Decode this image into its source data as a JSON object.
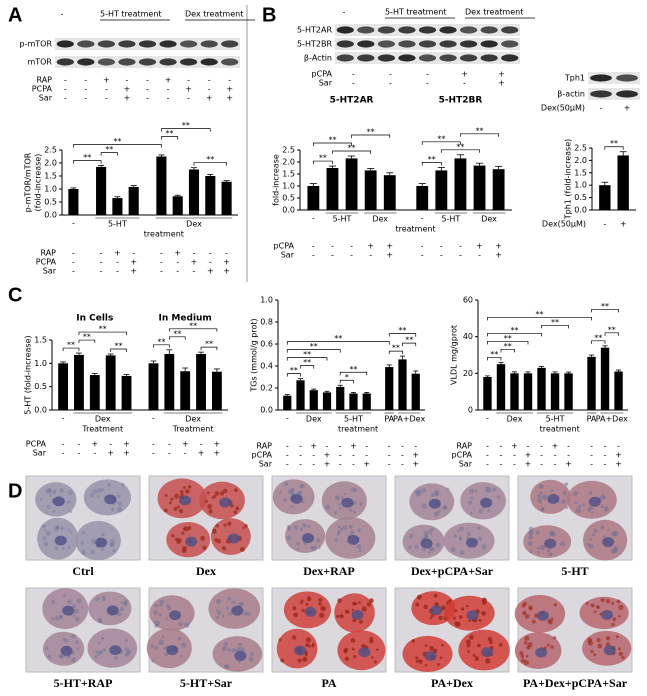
{
  "panels": [
    "A",
    "B",
    "C",
    "D"
  ],
  "blots": [
    {
      "header": [
        "-",
        "5-HT treatment",
        "Dex treatment"
      ],
      "rows": [
        "p-mTOR",
        "mTOR"
      ],
      "conditions": [
        {
          "name": "RAP",
          "signs": [
            "-",
            "-",
            "+",
            "-",
            "-",
            "+",
            "-",
            "-",
            "-"
          ]
        },
        {
          "name": "PCPA",
          "signs": [
            "-",
            "-",
            "-",
            "+",
            "-",
            "-",
            "+",
            "-",
            "+"
          ]
        },
        {
          "name": "Sar",
          "signs": [
            "-",
            "-",
            "-",
            "+",
            "-",
            "-",
            "-",
            "+",
            "+"
          ]
        }
      ]
    },
    {
      "header": [
        "-",
        "5-HT treatment",
        "Dex treatment"
      ],
      "rows": [
        "5-HT2AR",
        "5-HT2BR",
        "β-Actin"
      ],
      "conditions": [
        {
          "name": "pCPA",
          "signs": [
            "-",
            "-",
            "-",
            "+",
            "+"
          ]
        },
        {
          "name": "Sar",
          "signs": [
            "-",
            "-",
            "-",
            "-",
            "+"
          ]
        }
      ]
    },
    {
      "header": [],
      "rows": [
        "Tph1",
        "β-actin"
      ],
      "conditions": [
        {
          "name": "Dex(50μM)",
          "signs": [
            "-",
            "+"
          ]
        }
      ]
    }
  ],
  "chart_data": [
    {
      "type": "bar",
      "ylabel": [
        "p-mTOR/mTOR",
        "(fold-increase)"
      ],
      "categories": [
        "-",
        null,
        null,
        null,
        null,
        null,
        null,
        null,
        null
      ],
      "values": [
        1.0,
        1.85,
        0.65,
        1.08,
        2.25,
        0.72,
        1.75,
        1.5,
        1.28
      ],
      "errors": [
        0.04,
        0.05,
        0.05,
        0.05,
        0.06,
        0.04,
        0.07,
        0.06,
        0.04
      ],
      "color": "#000000",
      "ylim": [
        0,
        2.5
      ],
      "yticks": [
        {
          "value": 0,
          "label": "0.0"
        },
        0.5,
        {
          "value": 1,
          "label": "1.0"
        },
        1.5,
        {
          "value": 2,
          "label": "2.0"
        },
        2.5
      ],
      "groups": [
        {
          "label": "5-HT",
          "range": [
            1,
            3
          ]
        },
        {
          "label": "Dex",
          "range": [
            4,
            8
          ]
        }
      ],
      "captions": [
        {
          "text": "treatment",
          "range": [
            1,
            8
          ]
        }
      ],
      "conditions": [
        {
          "name": "RAP",
          "signs": [
            "-",
            "-",
            "+",
            "-",
            "-",
            "+",
            "-",
            "-",
            "-"
          ]
        },
        {
          "name": "PCPA",
          "signs": [
            "-",
            "-",
            "-",
            "+",
            "-",
            "-",
            "+",
            "-",
            "+"
          ]
        },
        {
          "name": "Sar",
          "signs": [
            "-",
            "-",
            "-",
            "+",
            "-",
            "-",
            "-",
            "+",
            "+"
          ]
        }
      ],
      "significance": [
        {
          "text": "**",
          "between": [
            0,
            1
          ]
        },
        {
          "text": "**",
          "between": [
            1,
            2
          ]
        },
        {
          "text": "**",
          "between": [
            0,
            4
          ]
        },
        {
          "text": "**",
          "between": [
            4,
            5
          ]
        },
        {
          "text": "**",
          "between": [
            6,
            8
          ]
        },
        {
          "text": "**",
          "between": [
            4,
            7
          ]
        }
      ]
    },
    {
      "type": "bar",
      "ylabel": [
        "fold-increase"
      ],
      "subtitles": [
        {
          "text": "5-HT2AR",
          "range": [
            0,
            4
          ]
        },
        {
          "text": "5-HT2BR",
          "range": [
            5,
            9
          ]
        }
      ],
      "categories": [
        "-",
        null,
        null,
        null,
        null,
        "-",
        null,
        null,
        null,
        null
      ],
      "values": [
        1.0,
        1.75,
        2.15,
        1.65,
        1.45,
        1.0,
        1.65,
        2.15,
        1.85,
        1.7
      ],
      "errors": [
        0.1,
        0.08,
        0.1,
        0.08,
        0.1,
        0.1,
        0.12,
        0.15,
        0.1,
        0.12
      ],
      "color": "#000000",
      "ylim": [
        0,
        2.5
      ],
      "yticks": [
        {
          "value": 0,
          "label": "0.0"
        },
        0.5,
        {
          "value": 1,
          "label": "1.0"
        },
        1.5,
        {
          "value": 2,
          "label": "2.0"
        },
        2.5
      ],
      "groups": [
        {
          "label": "5-HT",
          "range": [
            1,
            2
          ]
        },
        {
          "label": "Dex",
          "range": [
            3,
            4
          ]
        },
        {
          "label": "5-HT",
          "range": [
            6,
            7
          ]
        },
        {
          "label": "Dex",
          "range": [
            8,
            9
          ]
        }
      ],
      "captions": [
        {
          "text": "treatment",
          "range": [
            1,
            9
          ]
        }
      ],
      "conditions": [
        {
          "name": "pCPA",
          "signs": [
            "-",
            "-",
            "-",
            "+",
            "+",
            "-",
            "-",
            "-",
            "+",
            "+"
          ]
        },
        {
          "name": "Sar",
          "signs": [
            "-",
            "-",
            "-",
            "-",
            "+",
            "-",
            "-",
            "-",
            "-",
            "+"
          ]
        }
      ],
      "significance": [
        {
          "text": "**",
          "between": [
            0,
            1
          ]
        },
        {
          "text": "**",
          "between": [
            1,
            3
          ]
        },
        {
          "text": "**",
          "between": [
            0,
            2
          ]
        },
        {
          "text": "**",
          "between": [
            2,
            4
          ]
        },
        {
          "text": "**",
          "between": [
            5,
            6
          ]
        },
        {
          "text": "**",
          "between": [
            6,
            8
          ]
        },
        {
          "text": "**",
          "between": [
            5,
            7
          ]
        },
        {
          "text": "**",
          "between": [
            7,
            9
          ]
        }
      ]
    },
    {
      "type": "bar",
      "ylabel": [
        "Tph1 (fold-increase)"
      ],
      "categories": [
        null,
        null
      ],
      "values": [
        1.0,
        2.2
      ],
      "errors": [
        0.12,
        0.15
      ],
      "color": "#000000",
      "ylim": [
        0,
        2.5
      ],
      "yticks": [
        {
          "value": 0,
          "label": "0.0"
        },
        0.5,
        {
          "value": 1,
          "label": "1.0"
        },
        1.5,
        {
          "value": 2,
          "label": "2.0"
        },
        2.5
      ],
      "conditions": [
        {
          "name": "Dex(50μM)",
          "signs": [
            "-",
            "+"
          ]
        }
      ],
      "significance": [
        {
          "text": "**",
          "between": [
            0,
            1
          ]
        }
      ]
    },
    {
      "type": "bar",
      "ylabel": [
        "5-HT (fold-increase)"
      ],
      "subtitles": [
        {
          "text": "In Cells",
          "range": [
            0,
            4
          ]
        },
        {
          "text": "In Medium",
          "range": [
            5,
            9
          ]
        }
      ],
      "categories": [
        "-",
        null,
        null,
        null,
        null,
        "-",
        null,
        null,
        null,
        null
      ],
      "values": [
        1.0,
        1.18,
        0.75,
        1.17,
        0.73,
        1.0,
        1.2,
        0.83,
        1.2,
        0.82
      ],
      "errors": [
        0.03,
        0.04,
        0.03,
        0.03,
        0.03,
        0.05,
        0.09,
        0.07,
        0.04,
        0.06
      ],
      "color": "#000000",
      "ylim": [
        0,
        1.5
      ],
      "yticks": [
        {
          "value": 0,
          "label": "0.0"
        },
        0.5,
        {
          "value": 1,
          "label": "1.0"
        },
        1.5
      ],
      "groups": [
        {
          "label": "Dex",
          "range": [
            1,
            4
          ]
        },
        {
          "label": "Dex",
          "range": [
            6,
            9
          ]
        }
      ],
      "captions": [
        {
          "text": "Treatment",
          "range": [
            1,
            4
          ]
        },
        {
          "text": "Treatment",
          "range": [
            6,
            9
          ]
        }
      ],
      "conditions": [
        {
          "name": "PCPA",
          "signs": [
            "-",
            "-",
            "+",
            "-",
            "+",
            "-",
            "-",
            "+",
            "-",
            "+"
          ]
        },
        {
          "name": "Sar",
          "signs": [
            "-",
            "-",
            "-",
            "+",
            "+",
            "-",
            "-",
            "-",
            "+",
            "+"
          ]
        }
      ],
      "significance": [
        {
          "text": "**",
          "between": [
            0,
            1
          ]
        },
        {
          "text": "**",
          "between": [
            1,
            2
          ]
        },
        {
          "text": "**",
          "between": [
            3,
            4
          ]
        },
        {
          "text": "**",
          "between": [
            1,
            4
          ]
        },
        {
          "text": "**",
          "between": [
            5,
            6
          ]
        },
        {
          "text": "**",
          "between": [
            6,
            7
          ]
        },
        {
          "text": "**",
          "between": [
            8,
            9
          ]
        },
        {
          "text": "**",
          "between": [
            6,
            9
          ]
        }
      ]
    },
    {
      "type": "bar",
      "ylabel": [
        "TGs (mmol/g prot)"
      ],
      "categories": [
        "-",
        null,
        null,
        null,
        null,
        null,
        null,
        null,
        null,
        null
      ],
      "values": [
        0.13,
        0.27,
        0.18,
        0.16,
        0.21,
        0.15,
        0.15,
        0.39,
        0.46,
        0.33
      ],
      "errors": [
        0.01,
        0.015,
        0.01,
        0.01,
        0.015,
        0.01,
        0.01,
        0.02,
        0.03,
        0.025
      ],
      "color": "#000000",
      "ylim": [
        0,
        1.0
      ],
      "yticks": [
        {
          "value": 0,
          "label": "0.0"
        },
        0.2,
        0.4,
        0.6,
        0.8,
        {
          "value": 1,
          "label": "1.0"
        }
      ],
      "groups": [
        {
          "label": "Dex",
          "range": [
            1,
            3
          ]
        },
        {
          "label": "5-HT",
          "range": [
            4,
            6
          ]
        },
        {
          "label": "PA",
          "range": [
            7,
            7
          ]
        },
        {
          "label": "PA+Dex",
          "range": [
            8,
            9
          ]
        }
      ],
      "captions": [
        {
          "text": "treatment",
          "range": [
            1,
            9
          ]
        }
      ],
      "conditions": [
        {
          "name": "RAP",
          "signs": [
            "-",
            "-",
            "+",
            "-",
            "-",
            "+",
            "-",
            "-",
            "-",
            "-"
          ]
        },
        {
          "name": "pCPA",
          "signs": [
            "-",
            "-",
            "-",
            "+",
            "-",
            "-",
            "-",
            "-",
            "-",
            "+"
          ]
        },
        {
          "name": "Sar",
          "signs": [
            "-",
            "-",
            "-",
            "+",
            "-",
            "-",
            "+",
            "-",
            "-",
            "+"
          ]
        }
      ],
      "significance": [
        {
          "text": "**",
          "between": [
            0,
            1
          ]
        },
        {
          "text": "**",
          "between": [
            1,
            2
          ]
        },
        {
          "text": "**",
          "between": [
            0,
            3
          ]
        },
        {
          "text": "*",
          "between": [
            4,
            5
          ]
        },
        {
          "text": "**",
          "between": [
            4,
            6
          ]
        },
        {
          "text": "**",
          "between": [
            0,
            4
          ]
        },
        {
          "text": "**",
          "between": [
            7,
            8
          ]
        },
        {
          "text": "**",
          "between": [
            8,
            9
          ]
        },
        {
          "text": "**",
          "between": [
            0,
            7
          ]
        },
        {
          "text": "**",
          "between": [
            7,
            9
          ]
        }
      ]
    },
    {
      "type": "bar",
      "ylabel": [
        "VLDL mg/gprot"
      ],
      "categories": [
        "-",
        null,
        null,
        null,
        null,
        null,
        null,
        null,
        null,
        null
      ],
      "values": [
        18,
        25,
        20,
        20,
        23,
        20,
        20,
        29,
        34,
        21
      ],
      "errors": [
        0.6,
        1.0,
        0.8,
        0.8,
        0.8,
        0.8,
        0.7,
        1.0,
        1.0,
        0.8
      ],
      "color": "#000000",
      "ylim": [
        0,
        60
      ],
      "yticks": [
        0,
        20,
        40,
        60
      ],
      "groups": [
        {
          "label": "Dex",
          "range": [
            1,
            3
          ]
        },
        {
          "label": "5-HT",
          "range": [
            4,
            6
          ]
        },
        {
          "label": "PA",
          "range": [
            7,
            7
          ]
        },
        {
          "label": "PA+Dex",
          "range": [
            8,
            9
          ]
        }
      ],
      "captions": [
        {
          "text": "treatment",
          "range": [
            1,
            9
          ]
        }
      ],
      "conditions": [
        {
          "name": "RAP",
          "signs": [
            "-",
            "-",
            "+",
            "-",
            "-",
            "+",
            "-",
            "-",
            "-",
            "-"
          ]
        },
        {
          "name": "pCPA",
          "signs": [
            "-",
            "-",
            "-",
            "+",
            "-",
            "-",
            "-",
            "-",
            "-",
            "+"
          ]
        },
        {
          "name": "Sar",
          "signs": [
            "-",
            "-",
            "-",
            "+",
            "-",
            "-",
            "+",
            "-",
            "-",
            "+"
          ]
        }
      ],
      "significance": [
        {
          "text": "**",
          "between": [
            0,
            1
          ]
        },
        {
          "text": "**",
          "between": [
            1,
            2
          ]
        },
        {
          "text": "**",
          "between": [
            0,
            3
          ]
        },
        {
          "text": "**",
          "between": [
            0,
            4
          ]
        },
        {
          "text": "**",
          "between": [
            4,
            6
          ]
        },
        {
          "text": "**",
          "between": [
            7,
            8
          ]
        },
        {
          "text": "**",
          "between": [
            8,
            9
          ]
        },
        {
          "text": "**",
          "between": [
            0,
            7
          ]
        },
        {
          "text": "**",
          "between": [
            7,
            9
          ]
        }
      ]
    }
  ],
  "micrographs": [
    "Ctrl",
    "Dex",
    "Dex+RAP",
    "Dex+pCPA+Sar",
    "5-HT",
    "5-HT+RAP",
    "5-HT+Sar",
    "PA",
    "PA+Dex",
    "PA+Dex+pCPA+Sar"
  ]
}
